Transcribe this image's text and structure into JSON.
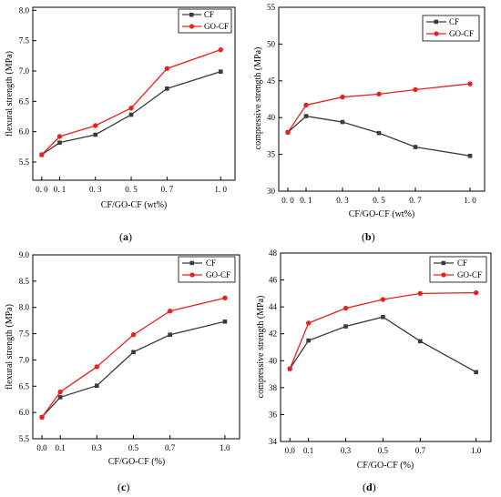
{
  "colors": {
    "cf": "#3a3a3a",
    "gocf": "#e8211d",
    "frame": "#000000"
  },
  "legend": {
    "series_1": "CF",
    "series_2": "GO-CF"
  },
  "chart_data": [
    {
      "id": "a",
      "type": "line",
      "caption_open": "(",
      "caption_letter": "a",
      "caption_close": ")",
      "xlabel": "CF/GO-CF (wt%)",
      "ylabel": "flexural strength (MPa)",
      "x": [
        0.0,
        0.1,
        0.3,
        0.5,
        0.7,
        1.0
      ],
      "xticks": [
        0.0,
        0.1,
        0.3,
        0.5,
        0.7,
        1.0
      ],
      "xtick_labels": [
        "0. 0",
        "0. 1",
        "0. 3",
        "0. 5",
        "0. 7",
        "1. 0"
      ],
      "xlim": [
        -0.05,
        1.08
      ],
      "ylim": [
        5.2,
        8.05
      ],
      "yticks": [
        5.5,
        6.0,
        6.5,
        7.0,
        7.5,
        8.0
      ],
      "ytick_labels": [
        "5.5",
        "6.0",
        "6.5",
        "7.0",
        "7.5",
        "8.0"
      ],
      "legend_position": "top-right",
      "series": [
        {
          "name": "CF",
          "values": [
            5.62,
            5.82,
            5.95,
            6.28,
            6.71,
            6.99
          ]
        },
        {
          "name": "GO-CF",
          "values": [
            5.62,
            5.92,
            6.1,
            6.39,
            7.04,
            7.35
          ]
        }
      ]
    },
    {
      "id": "b",
      "type": "line",
      "caption_open": "(",
      "caption_letter": "b",
      "caption_close": ")",
      "xlabel": "CF/GO-CF (wt%)",
      "ylabel": "compressive strength (MPa)",
      "x": [
        0.0,
        0.1,
        0.3,
        0.5,
        0.7,
        1.0
      ],
      "xticks": [
        0.0,
        0.1,
        0.3,
        0.5,
        0.7,
        1.0
      ],
      "xtick_labels": [
        "0. 0",
        "0. 1",
        "0. 3",
        "0. 5",
        "0. 7",
        "1. 0"
      ],
      "xlim": [
        -0.05,
        1.08
      ],
      "ylim": [
        30,
        55
      ],
      "yticks": [
        30,
        35,
        40,
        45,
        50,
        55
      ],
      "ytick_labels": [
        "30",
        "35",
        "40",
        "45",
        "50",
        "55"
      ],
      "legend_position": "top-right",
      "series": [
        {
          "name": "CF",
          "values": [
            38.0,
            40.2,
            39.4,
            37.9,
            36.0,
            34.8
          ]
        },
        {
          "name": "GO-CF",
          "values": [
            38.0,
            41.7,
            42.8,
            43.2,
            43.8,
            44.6
          ]
        }
      ]
    },
    {
      "id": "c",
      "type": "line",
      "caption_open": "(",
      "caption_letter": "c",
      "caption_close": ")",
      "xlabel": "CF/GO-CF (%)",
      "ylabel": "flexural strength (MPa)",
      "x": [
        0.0,
        0.1,
        0.3,
        0.5,
        0.7,
        1.0
      ],
      "xticks": [
        0.0,
        0.1,
        0.3,
        0.5,
        0.7,
        1.0
      ],
      "xtick_labels": [
        "0.0",
        "0.1",
        "0.3",
        "0.5",
        "0.7",
        "1.0"
      ],
      "xlim": [
        -0.05,
        1.08
      ],
      "ylim": [
        5.5,
        9.0
      ],
      "yticks": [
        5.5,
        6.0,
        6.5,
        7.0,
        7.5,
        8.0,
        8.5,
        9.0
      ],
      "ytick_labels": [
        "5.5",
        "6.0",
        "6.5",
        "7.0",
        "7.5",
        "8.0",
        "8.5",
        "9.0"
      ],
      "legend_position": "top-right",
      "series": [
        {
          "name": "CF",
          "values": [
            5.91,
            6.29,
            6.51,
            7.15,
            7.48,
            7.73
          ]
        },
        {
          "name": "GO-CF",
          "values": [
            5.91,
            6.39,
            6.87,
            7.48,
            7.93,
            8.18
          ]
        }
      ]
    },
    {
      "id": "d",
      "type": "line",
      "caption_open": "(",
      "caption_letter": "d",
      "caption_close": ")",
      "xlabel": "CF/GO-CF (%)",
      "ylabel": "compressive strength (MPa)",
      "x": [
        0.0,
        0.1,
        0.3,
        0.5,
        0.7,
        1.0
      ],
      "xticks": [
        0.0,
        0.1,
        0.3,
        0.5,
        0.7,
        1.0
      ],
      "xtick_labels": [
        "0.0",
        "0.1",
        "0.3",
        "0.5",
        "0.7",
        "1.0"
      ],
      "xlim": [
        -0.05,
        1.08
      ],
      "ylim": [
        34,
        48
      ],
      "yticks": [
        34,
        36,
        38,
        40,
        42,
        44,
        46,
        48
      ],
      "ytick_labels": [
        "34",
        "36",
        "38",
        "40",
        "42",
        "44",
        "46",
        "48"
      ],
      "legend_position": "top-right",
      "series": [
        {
          "name": "CF",
          "values": [
            39.4,
            41.5,
            42.55,
            43.25,
            41.45,
            39.15
          ]
        },
        {
          "name": "GO-CF",
          "values": [
            39.4,
            42.8,
            43.9,
            44.55,
            45.0,
            45.05
          ]
        }
      ]
    }
  ]
}
